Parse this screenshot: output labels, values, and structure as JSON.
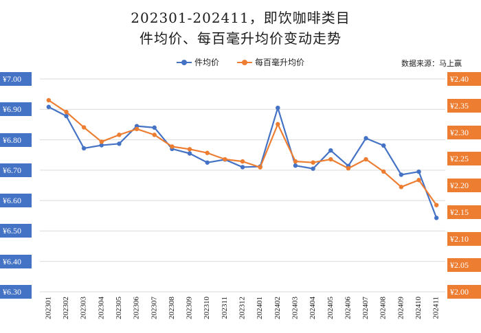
{
  "title": "202301-202411，即饮咖啡类目",
  "subtitle": "件均价、每百毫升均价变动走势",
  "source": "数据来源：马上赢",
  "chart_data": {
    "type": "line",
    "categories": [
      "202301",
      "202302",
      "202303",
      "202304",
      "202305",
      "202306",
      "202307",
      "202308",
      "202309",
      "202310",
      "202311",
      "202312",
      "202401",
      "202402",
      "202403",
      "202404",
      "202405",
      "202406",
      "202407",
      "202408",
      "202409",
      "202410",
      "202411"
    ],
    "series": [
      {
        "name": "件均价",
        "axis": "left",
        "color": "#4472C4",
        "values": [
          6.908,
          6.878,
          6.772,
          6.782,
          6.787,
          6.845,
          6.84,
          6.77,
          6.755,
          6.725,
          6.735,
          6.71,
          6.712,
          6.905,
          6.715,
          6.705,
          6.765,
          6.714,
          6.805,
          6.781,
          6.685,
          6.695,
          6.543
        ]
      },
      {
        "name": "每百毫升均价",
        "axis": "right",
        "color": "#ED7D31",
        "values": [
          2.36,
          2.338,
          2.309,
          2.282,
          2.295,
          2.306,
          2.295,
          2.273,
          2.268,
          2.261,
          2.249,
          2.245,
          2.234,
          2.315,
          2.245,
          2.243,
          2.249,
          2.232,
          2.249,
          2.226,
          2.197,
          2.21,
          2.163
        ]
      }
    ],
    "y_left": {
      "min": 6.3,
      "max": 7.0,
      "ticks": [
        "¥7.00",
        "¥6.90",
        "¥6.80",
        "¥6.70",
        "¥6.60",
        "¥6.50",
        "¥6.40",
        "¥6.30"
      ]
    },
    "y_right": {
      "min": 2.0,
      "max": 2.4,
      "ticks": [
        "¥2.40",
        "¥2.35",
        "¥2.30",
        "¥2.25",
        "¥2.20",
        "¥2.15",
        "¥2.10",
        "¥2.05",
        "¥2.00"
      ]
    },
    "grid": true,
    "legend": "top-center"
  }
}
